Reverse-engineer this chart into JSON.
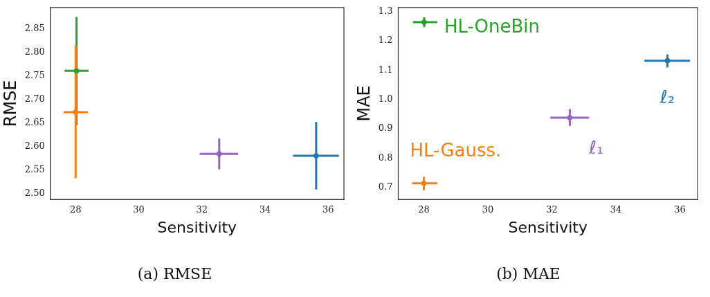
{
  "chart_data": [
    {
      "type": "scatter",
      "xlabel": "Sensitivity",
      "ylabel": "RMSE",
      "xlim": [
        27.2,
        36.5
      ],
      "xticks": [
        28,
        30,
        32,
        34,
        36
      ],
      "ylim": [
        2.487,
        2.896
      ],
      "yticks": [
        {
          "value": 2.5,
          "label": "2.50"
        },
        2.55,
        {
          "value": 2.6,
          "label": "2.60"
        },
        2.65,
        {
          "value": 2.7,
          "label": "2.70"
        },
        2.75,
        {
          "value": 2.8,
          "label": "2.80"
        },
        2.85
      ],
      "grid": false,
      "legend": false,
      "marker": "circle",
      "annotations": [
        "(a) RMSE"
      ],
      "series": [
        {
          "color": "#2ca02c",
          "x": [
            28.03
          ],
          "values": [
            2.761
          ],
          "errors": [
            [
              2.645,
              2.876
            ]
          ],
          "xerrors": [
            [
              27.65,
              28.41
            ]
          ]
        },
        {
          "color": "#ff7f0e",
          "x": [
            28.0
          ],
          "values": [
            2.673
          ],
          "errors": [
            [
              2.532,
              2.814
            ]
          ],
          "xerrors": [
            [
              27.62,
              28.39
            ]
          ]
        },
        {
          "color": "#9467bd",
          "x": [
            32.55
          ],
          "values": [
            2.584
          ],
          "errors": [
            [
              2.551,
              2.617
            ]
          ],
          "xerrors": [
            [
              31.93,
              33.15
            ]
          ]
        },
        {
          "color": "#1f77b4",
          "x": [
            35.62
          ],
          "values": [
            2.58
          ],
          "errors": [
            [
              2.508,
              2.652
            ]
          ],
          "xerrors": [
            [
              34.89,
              36.34
            ]
          ]
        }
      ]
    },
    {
      "type": "scatter",
      "xlabel": "Sensitivity",
      "ylabel": "MAE",
      "xlim": [
        27.2,
        36.55
      ],
      "xticks": [
        28,
        30,
        32,
        34,
        36
      ],
      "ylim": [
        0.66,
        1.313
      ],
      "yticks": [
        0.7,
        0.8,
        0.9,
        {
          "value": 1,
          "label": "1.0"
        },
        1.1,
        1.2,
        1.3
      ],
      "grid": false,
      "legend": false,
      "marker": "circle",
      "annotations": [
        "(b) MAE"
      ],
      "series": [
        {
          "name": "HL-OneBin",
          "color": "#2ca02c",
          "x": [
            28.01
          ],
          "values": [
            1.263
          ],
          "errors": [
            [
              1.246,
              1.28
            ]
          ],
          "xerrors": [
            [
              27.66,
              28.42
            ]
          ]
        },
        {
          "name": "HL-Gauss.",
          "color": "#ff7f0e",
          "x": [
            28.0
          ],
          "values": [
            0.715
          ],
          "errors": [
            [
              0.691,
              0.737
            ]
          ],
          "xerrors": [
            [
              27.63,
              28.42
            ]
          ]
        },
        {
          "name": "ℓ₁",
          "color": "#9467bd",
          "x": [
            32.56
          ],
          "values": [
            0.938
          ],
          "errors": [
            [
              0.91,
              0.967
            ]
          ],
          "xerrors": [
            [
              31.95,
              33.16
            ]
          ]
        },
        {
          "name": "ℓ₂",
          "color": "#1f77b4",
          "x": [
            35.61
          ],
          "values": [
            1.132
          ],
          "errors": [
            [
              1.109,
              1.153
            ]
          ],
          "xerrors": [
            [
              34.89,
              36.31
            ]
          ]
        }
      ]
    }
  ]
}
